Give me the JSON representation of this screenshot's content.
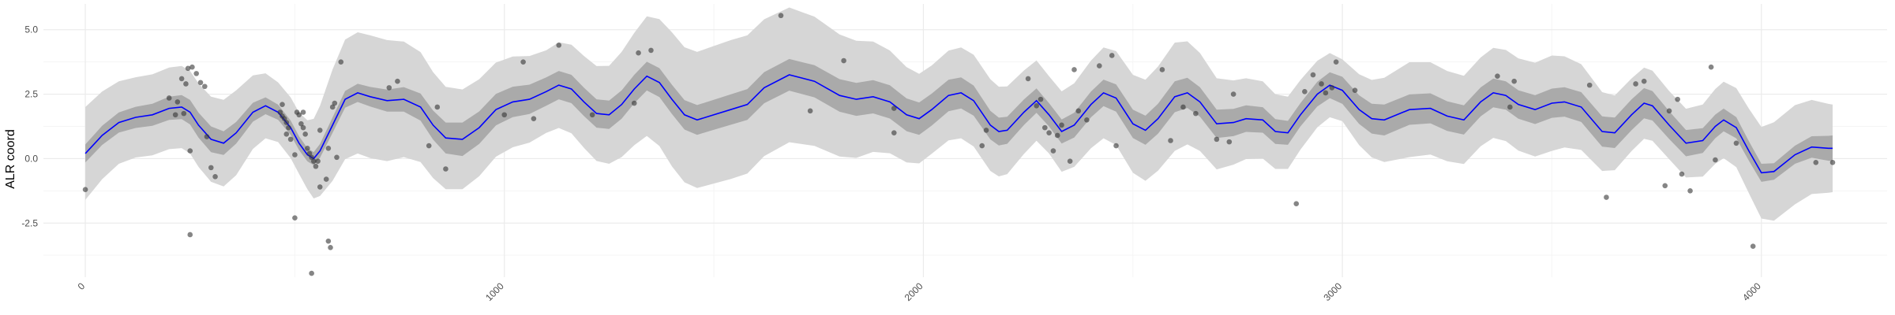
{
  "chart_data": {
    "type": "line",
    "title": "",
    "xlabel": "",
    "ylabel": "ALR coord",
    "xlim": [
      -100,
      4300
    ],
    "ylim": [
      -4.6,
      6.0
    ],
    "x_ticks": [
      0,
      1000,
      2000,
      3000,
      4000
    ],
    "x_minor": [
      500,
      1500,
      2500,
      3500
    ],
    "y_ticks": [
      -2.5,
      0.0,
      2.5,
      5.0
    ],
    "y_tick_labels": [
      "-2.5",
      "0.0",
      "2.5",
      "5.0"
    ],
    "y_minor": [
      -3.75,
      -1.25,
      1.25,
      3.75
    ],
    "grid": true,
    "colors": {
      "mean_line": "#0000ff",
      "inner_band": "#aaaaaa",
      "outer_band": "#d6d6d6",
      "points": "#333333",
      "grid_major": "#ebebeb",
      "grid_minor": "#f5f5f5"
    },
    "mean": [
      [
        0,
        0.2
      ],
      [
        40,
        0.9
      ],
      [
        80,
        1.4
      ],
      [
        120,
        1.6
      ],
      [
        160,
        1.7
      ],
      [
        200,
        1.95
      ],
      [
        230,
        2.0
      ],
      [
        250,
        1.8
      ],
      [
        270,
        1.3
      ],
      [
        300,
        0.75
      ],
      [
        330,
        0.6
      ],
      [
        360,
        1.0
      ],
      [
        400,
        1.8
      ],
      [
        430,
        2.05
      ],
      [
        460,
        1.8
      ],
      [
        490,
        1.2
      ],
      [
        510,
        0.6
      ],
      [
        530,
        0.15
      ],
      [
        545,
        0.0
      ],
      [
        560,
        0.3
      ],
      [
        590,
        1.3
      ],
      [
        620,
        2.3
      ],
      [
        650,
        2.55
      ],
      [
        680,
        2.4
      ],
      [
        720,
        2.25
      ],
      [
        760,
        2.3
      ],
      [
        800,
        2.0
      ],
      [
        830,
        1.3
      ],
      [
        860,
        0.8
      ],
      [
        900,
        0.75
      ],
      [
        940,
        1.2
      ],
      [
        980,
        1.9
      ],
      [
        1020,
        2.2
      ],
      [
        1060,
        2.3
      ],
      [
        1100,
        2.6
      ],
      [
        1130,
        2.85
      ],
      [
        1160,
        2.7
      ],
      [
        1190,
        2.2
      ],
      [
        1220,
        1.75
      ],
      [
        1250,
        1.7
      ],
      [
        1280,
        2.1
      ],
      [
        1310,
        2.7
      ],
      [
        1340,
        3.2
      ],
      [
        1370,
        2.95
      ],
      [
        1400,
        2.3
      ],
      [
        1430,
        1.7
      ],
      [
        1460,
        1.5
      ],
      [
        1490,
        1.65
      ],
      [
        1540,
        1.9
      ],
      [
        1580,
        2.1
      ],
      [
        1620,
        2.75
      ],
      [
        1680,
        3.25
      ],
      [
        1740,
        3.0
      ],
      [
        1800,
        2.45
      ],
      [
        1840,
        2.3
      ],
      [
        1880,
        2.4
      ],
      [
        1920,
        2.2
      ],
      [
        1960,
        1.7
      ],
      [
        1990,
        1.55
      ],
      [
        2020,
        1.9
      ],
      [
        2060,
        2.45
      ],
      [
        2090,
        2.55
      ],
      [
        2120,
        2.25
      ],
      [
        2160,
        1.3
      ],
      [
        2180,
        1.05
      ],
      [
        2200,
        1.1
      ],
      [
        2240,
        1.8
      ],
      [
        2270,
        2.25
      ],
      [
        2300,
        1.7
      ],
      [
        2330,
        1.05
      ],
      [
        2360,
        1.3
      ],
      [
        2400,
        2.1
      ],
      [
        2430,
        2.55
      ],
      [
        2460,
        2.35
      ],
      [
        2500,
        1.35
      ],
      [
        2530,
        1.1
      ],
      [
        2560,
        1.55
      ],
      [
        2600,
        2.4
      ],
      [
        2630,
        2.55
      ],
      [
        2660,
        2.2
      ],
      [
        2700,
        1.35
      ],
      [
        2740,
        1.4
      ],
      [
        2770,
        1.55
      ],
      [
        2810,
        1.5
      ],
      [
        2840,
        1.05
      ],
      [
        2870,
        1.0
      ],
      [
        2900,
        1.7
      ],
      [
        2940,
        2.5
      ],
      [
        2970,
        2.85
      ],
      [
        3000,
        2.65
      ],
      [
        3040,
        1.9
      ],
      [
        3070,
        1.55
      ],
      [
        3100,
        1.5
      ],
      [
        3160,
        1.9
      ],
      [
        3210,
        1.95
      ],
      [
        3250,
        1.65
      ],
      [
        3290,
        1.5
      ],
      [
        3330,
        2.2
      ],
      [
        3360,
        2.55
      ],
      [
        3390,
        2.45
      ],
      [
        3420,
        2.1
      ],
      [
        3460,
        1.9
      ],
      [
        3500,
        2.15
      ],
      [
        3530,
        2.2
      ],
      [
        3570,
        2.0
      ],
      [
        3620,
        1.05
      ],
      [
        3650,
        1.0
      ],
      [
        3690,
        1.7
      ],
      [
        3720,
        2.15
      ],
      [
        3740,
        2.05
      ],
      [
        3780,
        1.3
      ],
      [
        3820,
        0.6
      ],
      [
        3860,
        0.7
      ],
      [
        3890,
        1.25
      ],
      [
        3910,
        1.5
      ],
      [
        3940,
        1.2
      ],
      [
        3970,
        0.3
      ],
      [
        4000,
        -0.55
      ],
      [
        4030,
        -0.5
      ],
      [
        4080,
        0.15
      ],
      [
        4120,
        0.45
      ],
      [
        4160,
        0.4
      ],
      [
        4170,
        0.4
      ]
    ],
    "inner_band_halfwidth": [
      [
        0,
        0.35
      ],
      [
        300,
        0.5
      ],
      [
        450,
        0.3
      ],
      [
        540,
        0.25
      ],
      [
        700,
        0.4
      ],
      [
        900,
        0.65
      ],
      [
        1100,
        0.55
      ],
      [
        1300,
        0.55
      ],
      [
        1600,
        0.6
      ],
      [
        1900,
        0.65
      ],
      [
        2100,
        0.6
      ],
      [
        2300,
        0.45
      ],
      [
        2600,
        0.6
      ],
      [
        2900,
        0.45
      ],
      [
        3100,
        0.6
      ],
      [
        3400,
        0.55
      ],
      [
        3700,
        0.6
      ],
      [
        3900,
        0.45
      ],
      [
        4050,
        0.3
      ],
      [
        4170,
        0.5
      ]
    ],
    "outer_band_halfwidth": [
      [
        0,
        1.8
      ],
      [
        100,
        1.55
      ],
      [
        250,
        1.6
      ],
      [
        350,
        1.7
      ],
      [
        450,
        1.15
      ],
      [
        520,
        1.2
      ],
      [
        600,
        2.3
      ],
      [
        700,
        2.4
      ],
      [
        850,
        2.0
      ],
      [
        1000,
        1.8
      ],
      [
        1100,
        1.6
      ],
      [
        1250,
        1.9
      ],
      [
        1400,
        2.6
      ],
      [
        1550,
        2.7
      ],
      [
        1700,
        2.6
      ],
      [
        1850,
        2.25
      ],
      [
        2000,
        1.7
      ],
      [
        2150,
        1.8
      ],
      [
        2300,
        1.5
      ],
      [
        2450,
        1.8
      ],
      [
        2600,
        2.1
      ],
      [
        2750,
        1.6
      ],
      [
        2900,
        1.35
      ],
      [
        3000,
        1.2
      ],
      [
        3150,
        1.85
      ],
      [
        3300,
        1.7
      ],
      [
        3500,
        1.85
      ],
      [
        3650,
        1.45
      ],
      [
        3800,
        1.3
      ],
      [
        3950,
        1.55
      ],
      [
        4050,
        2.0
      ],
      [
        4170,
        1.7
      ]
    ],
    "observations": [
      [
        0,
        -1.2
      ],
      [
        200,
        2.35
      ],
      [
        220,
        2.2
      ],
      [
        235,
        1.75
      ],
      [
        215,
        1.7
      ],
      [
        230,
        3.1
      ],
      [
        240,
        2.9
      ],
      [
        245,
        3.5
      ],
      [
        255,
        3.55
      ],
      [
        265,
        3.3
      ],
      [
        275,
        2.95
      ],
      [
        285,
        2.8
      ],
      [
        250,
        0.3
      ],
      [
        250,
        -2.95
      ],
      [
        290,
        0.85
      ],
      [
        300,
        -0.35
      ],
      [
        310,
        -0.7
      ],
      [
        470,
        2.1
      ],
      [
        465,
        1.8
      ],
      [
        470,
        1.65
      ],
      [
        475,
        1.55
      ],
      [
        480,
        1.4
      ],
      [
        485,
        1.2
      ],
      [
        480,
        0.95
      ],
      [
        490,
        0.75
      ],
      [
        500,
        0.15
      ],
      [
        505,
        1.8
      ],
      [
        510,
        1.7
      ],
      [
        515,
        1.35
      ],
      [
        520,
        1.2
      ],
      [
        525,
        0.95
      ],
      [
        530,
        0.4
      ],
      [
        535,
        0.2
      ],
      [
        540,
        0.05
      ],
      [
        545,
        -0.1
      ],
      [
        550,
        -0.3
      ],
      [
        555,
        -0.1
      ],
      [
        560,
        -1.1
      ],
      [
        540,
        -4.45
      ],
      [
        580,
        -3.2
      ],
      [
        585,
        -3.45
      ],
      [
        575,
        -0.8
      ],
      [
        580,
        0.4
      ],
      [
        590,
        2.0
      ],
      [
        600,
        0.05
      ],
      [
        595,
        2.15
      ],
      [
        610,
        3.75
      ],
      [
        560,
        1.1
      ],
      [
        500,
        -2.3
      ],
      [
        520,
        1.8
      ],
      [
        725,
        2.75
      ],
      [
        745,
        3.0
      ],
      [
        820,
        0.5
      ],
      [
        840,
        2.0
      ],
      [
        860,
        -0.4
      ],
      [
        1000,
        1.7
      ],
      [
        1045,
        3.75
      ],
      [
        1070,
        1.55
      ],
      [
        1130,
        4.4
      ],
      [
        1210,
        1.7
      ],
      [
        1310,
        2.15
      ],
      [
        1320,
        4.1
      ],
      [
        1350,
        4.2
      ],
      [
        1660,
        5.55
      ],
      [
        1730,
        1.85
      ],
      [
        1810,
        3.8
      ],
      [
        1930,
        1.95
      ],
      [
        1930,
        1.0
      ],
      [
        2140,
        0.5
      ],
      [
        2150,
        1.1
      ],
      [
        2250,
        3.1
      ],
      [
        2270,
        2.05
      ],
      [
        2280,
        2.3
      ],
      [
        2290,
        1.2
      ],
      [
        2300,
        1.0
      ],
      [
        2310,
        0.3
      ],
      [
        2320,
        0.9
      ],
      [
        2330,
        1.3
      ],
      [
        2360,
        3.45
      ],
      [
        2350,
        -0.1
      ],
      [
        2370,
        1.85
      ],
      [
        2390,
        1.5
      ],
      [
        2420,
        3.6
      ],
      [
        2450,
        4.0
      ],
      [
        2460,
        0.5
      ],
      [
        2570,
        3.45
      ],
      [
        2590,
        0.7
      ],
      [
        2620,
        2.0
      ],
      [
        2650,
        1.75
      ],
      [
        2700,
        0.75
      ],
      [
        2730,
        0.65
      ],
      [
        2740,
        2.5
      ],
      [
        2890,
        -1.75
      ],
      [
        2910,
        2.6
      ],
      [
        2930,
        3.25
      ],
      [
        2950,
        2.9
      ],
      [
        2960,
        2.55
      ],
      [
        2975,
        2.75
      ],
      [
        2985,
        3.75
      ],
      [
        3030,
        2.65
      ],
      [
        3370,
        3.2
      ],
      [
        3400,
        2.0
      ],
      [
        3410,
        3.0
      ],
      [
        3590,
        2.85
      ],
      [
        3630,
        -1.5
      ],
      [
        3700,
        2.9
      ],
      [
        3720,
        3.0
      ],
      [
        3770,
        -1.05
      ],
      [
        3780,
        1.85
      ],
      [
        3800,
        2.3
      ],
      [
        3810,
        -0.6
      ],
      [
        3830,
        -1.25
      ],
      [
        3880,
        3.55
      ],
      [
        3890,
        -0.05
      ],
      [
        3940,
        0.6
      ],
      [
        3980,
        -3.4
      ],
      [
        4130,
        -0.15
      ],
      [
        4170,
        -0.15
      ]
    ]
  }
}
